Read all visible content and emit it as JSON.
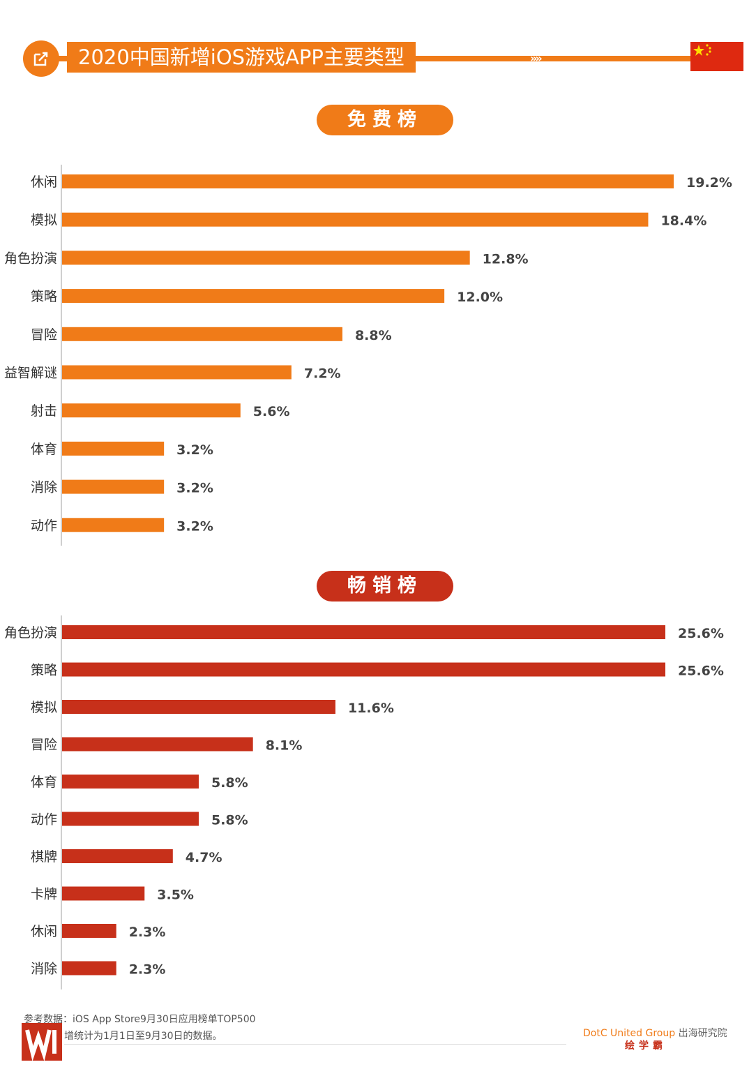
{
  "header": {
    "title": "2020中国新增iOS游戏APP主要类型",
    "chevrons": "»»",
    "icon": "external-share-icon",
    "flag": "china-flag"
  },
  "colors": {
    "free": "#f07b18",
    "grossing": "#c7301a",
    "axis": "#cfcfcf"
  },
  "sections": {
    "free": {
      "pill_label": "免费榜"
    },
    "grossing": {
      "pill_label": "畅销榜"
    }
  },
  "chart_data": [
    {
      "type": "bar",
      "orientation": "horizontal",
      "title": "免费榜",
      "categories": [
        "休闲",
        "模拟",
        "角色扮演",
        "策略",
        "冒险",
        "益智解谜",
        "射击",
        "体育",
        "消除",
        "动作"
      ],
      "values": [
        19.2,
        18.4,
        12.8,
        12.0,
        8.8,
        7.2,
        5.6,
        3.2,
        3.2,
        3.2
      ],
      "value_labels": [
        "19.2%",
        "18.4%",
        "12.8%",
        "12.0%",
        "8.8%",
        "7.2%",
        "5.6%",
        "3.2%",
        "3.2%",
        "3.2%"
      ],
      "unit": "%",
      "xlim": [
        0,
        20
      ],
      "grid": false
    },
    {
      "type": "bar",
      "orientation": "horizontal",
      "title": "畅销榜",
      "categories": [
        "角色扮演",
        "策略",
        "模拟",
        "冒险",
        "体育",
        "动作",
        "棋牌",
        "卡牌",
        "休闲",
        "消除"
      ],
      "values": [
        25.6,
        25.6,
        11.6,
        8.1,
        5.8,
        5.8,
        4.7,
        3.5,
        2.3,
        2.3
      ],
      "value_labels": [
        "25.6%",
        "25.6%",
        "11.6%",
        "8.1%",
        "5.8%",
        "5.8%",
        "4.7%",
        "3.5%",
        "2.3%",
        "2.3%"
      ],
      "unit": "%",
      "xlim": [
        0,
        26
      ],
      "grid": false
    }
  ],
  "footer": {
    "source": "参考数据：iOS App Store9月30日应用榜单TOP500",
    "note": "增统计为1月1日至9月30日的数据。",
    "brand_en": "DotC United Group",
    "brand_cn": "出海研究院",
    "brand_sub": "绘学霸",
    "logo": "w-logo-icon"
  }
}
